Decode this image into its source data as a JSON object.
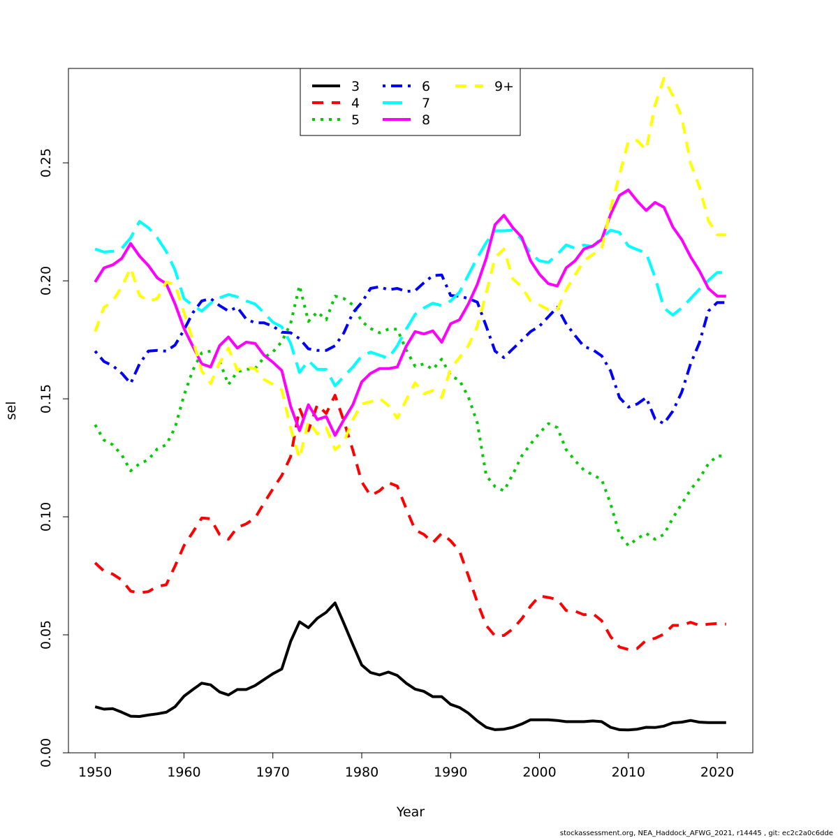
{
  "chart_data": {
    "type": "line",
    "xlabel": "Year",
    "ylabel": "sel",
    "xlim": [
      1947,
      2024
    ],
    "ylim": [
      0,
      0.29
    ],
    "x_ticks": [
      1950,
      1960,
      1970,
      1980,
      1990,
      2000,
      2010,
      2020
    ],
    "y_ticks": [
      0.0,
      0.05,
      0.1,
      0.15,
      0.2,
      0.25
    ],
    "y_tick_labels": [
      "0.00",
      "0.05",
      "0.10",
      "0.15",
      "0.20",
      "0.25"
    ],
    "grid": false,
    "legend_position": "top-center",
    "x": [
      1950,
      1951,
      1952,
      1953,
      1954,
      1955,
      1956,
      1957,
      1958,
      1959,
      1960,
      1961,
      1962,
      1963,
      1964,
      1965,
      1966,
      1967,
      1968,
      1969,
      1970,
      1971,
      1972,
      1973,
      1974,
      1975,
      1976,
      1977,
      1978,
      1979,
      1980,
      1981,
      1982,
      1983,
      1984,
      1985,
      1986,
      1987,
      1988,
      1989,
      1990,
      1991,
      1992,
      1993,
      1994,
      1995,
      1996,
      1997,
      1998,
      1999,
      2000,
      2001,
      2002,
      2003,
      2004,
      2005,
      2006,
      2007,
      2008,
      2009,
      2010,
      2011,
      2012,
      2013,
      2014,
      2015,
      2016,
      2017,
      2018,
      2019,
      2020,
      2021
    ],
    "series": [
      {
        "name": "3",
        "color": "#000000",
        "dash": "solid",
        "width": 4,
        "values": [
          0.0195,
          0.0185,
          0.0187,
          0.0172,
          0.0155,
          0.0154,
          0.016,
          0.0165,
          0.0172,
          0.0195,
          0.024,
          0.0268,
          0.0295,
          0.0288,
          0.0258,
          0.0245,
          0.0268,
          0.0268,
          0.0285,
          0.031,
          0.0335,
          0.0355,
          0.0472,
          0.0555,
          0.053,
          0.057,
          0.0595,
          0.0635,
          0.0548,
          0.0458,
          0.0372,
          0.034,
          0.033,
          0.0342,
          0.0328,
          0.0295,
          0.027,
          0.026,
          0.0238,
          0.0238,
          0.0205,
          0.0192,
          0.0168,
          0.0135,
          0.0108,
          0.0098,
          0.01,
          0.0108,
          0.0122,
          0.014,
          0.014,
          0.014,
          0.0137,
          0.0132,
          0.0132,
          0.0132,
          0.0135,
          0.0132,
          0.0108,
          0.0098,
          0.0097,
          0.01,
          0.0108,
          0.0107,
          0.0113,
          0.0127,
          0.013,
          0.0137,
          0.013,
          0.0128,
          0.0128,
          0.0128
        ]
      },
      {
        "name": "4",
        "color": "#ff0000",
        "dash": "dashed",
        "width": 4,
        "values": [
          0.0805,
          0.077,
          0.0757,
          0.0732,
          0.0685,
          0.0678,
          0.0683,
          0.0705,
          0.0712,
          0.0792,
          0.0878,
          0.0935,
          0.0995,
          0.0992,
          0.0925,
          0.0905,
          0.0955,
          0.097,
          0.0995,
          0.1058,
          0.1118,
          0.1175,
          0.1255,
          0.146,
          0.1365,
          0.1475,
          0.1438,
          0.1515,
          0.1405,
          0.1282,
          0.1148,
          0.109,
          0.111,
          0.1145,
          0.113,
          0.1035,
          0.0945,
          0.0925,
          0.089,
          0.093,
          0.0898,
          0.0855,
          0.075,
          0.0638,
          0.054,
          0.0495,
          0.0497,
          0.0525,
          0.0568,
          0.0622,
          0.0665,
          0.0658,
          0.065,
          0.0603,
          0.06,
          0.0585,
          0.059,
          0.056,
          0.0492,
          0.0448,
          0.0438,
          0.0442,
          0.0477,
          0.0485,
          0.0503,
          0.054,
          0.054,
          0.0553,
          0.054,
          0.0545,
          0.0548,
          0.0545
        ]
      },
      {
        "name": "5",
        "color": "#00cd00",
        "dash": "dotted",
        "width": 4,
        "values": [
          0.139,
          0.1325,
          0.1305,
          0.1262,
          0.1195,
          0.1225,
          0.1242,
          0.1288,
          0.1305,
          0.1378,
          0.1515,
          0.1622,
          0.1695,
          0.1702,
          0.166,
          0.156,
          0.1615,
          0.1625,
          0.1628,
          0.1675,
          0.1698,
          0.1742,
          0.182,
          0.198,
          0.1828,
          0.1868,
          0.1835,
          0.1935,
          0.1925,
          0.1898,
          0.1828,
          0.1798,
          0.178,
          0.1795,
          0.1795,
          0.1708,
          0.1638,
          0.1648,
          0.1625,
          0.1668,
          0.1598,
          0.1578,
          0.1508,
          0.1398,
          0.1175,
          0.1128,
          0.111,
          0.118,
          0.1258,
          0.1308,
          0.1355,
          0.1395,
          0.1378,
          0.1285,
          0.1238,
          0.1198,
          0.1178,
          0.1158,
          0.1055,
          0.0925,
          0.0878,
          0.0908,
          0.093,
          0.0905,
          0.0925,
          0.0995,
          0.1055,
          0.1115,
          0.1162,
          0.1225,
          0.1258,
          0.1258
        ]
      },
      {
        "name": "6",
        "color": "#0000ff",
        "dash": "dashdot",
        "width": 4,
        "values": [
          0.1702,
          0.1658,
          0.164,
          0.1608,
          0.1565,
          0.1648,
          0.1702,
          0.1705,
          0.1702,
          0.1728,
          0.1792,
          0.1865,
          0.1915,
          0.1925,
          0.1895,
          0.1872,
          0.1888,
          0.1838,
          0.1822,
          0.1822,
          0.1808,
          0.1782,
          0.178,
          0.1755,
          0.1712,
          0.1705,
          0.1705,
          0.1725,
          0.178,
          0.1865,
          0.1908,
          0.1968,
          0.1975,
          0.1962,
          0.1968,
          0.1955,
          0.1958,
          0.1992,
          0.2022,
          0.2025,
          0.1938,
          0.1935,
          0.1925,
          0.191,
          0.1808,
          0.1702,
          0.1675,
          0.1712,
          0.1748,
          0.1785,
          0.1808,
          0.1848,
          0.1888,
          0.1818,
          0.1768,
          0.1722,
          0.1708,
          0.1682,
          0.1618,
          0.1505,
          0.1465,
          0.1478,
          0.1505,
          0.1415,
          0.1395,
          0.1448,
          0.1528,
          0.1648,
          0.1738,
          0.1872,
          0.1908,
          0.1908
        ]
      },
      {
        "name": "7",
        "color": "#00ffff",
        "dash": "longdash",
        "width": 4,
        "values": [
          0.2135,
          0.2122,
          0.2125,
          0.2138,
          0.2182,
          0.2252,
          0.2225,
          0.2182,
          0.2125,
          0.2045,
          0.1925,
          0.1895,
          0.1872,
          0.1905,
          0.1928,
          0.1942,
          0.1932,
          0.1915,
          0.1902,
          0.1865,
          0.1825,
          0.1805,
          0.1735,
          0.1612,
          0.1662,
          0.1625,
          0.1625,
          0.1555,
          0.1595,
          0.1635,
          0.1682,
          0.1698,
          0.1685,
          0.1672,
          0.1725,
          0.1795,
          0.1858,
          0.1885,
          0.1905,
          0.1895,
          0.1915,
          0.1952,
          0.2025,
          0.2098,
          0.2162,
          0.2212,
          0.2212,
          0.2215,
          0.2175,
          0.2115,
          0.2085,
          0.2078,
          0.2112,
          0.2152,
          0.2138,
          0.2152,
          0.2145,
          0.2182,
          0.2215,
          0.2205,
          0.2148,
          0.2132,
          0.2118,
          0.2015,
          0.1885,
          0.1855,
          0.1885,
          0.1925,
          0.1965,
          0.2002,
          0.2035,
          0.2035
        ]
      },
      {
        "name": "8",
        "color": "#ff00ff",
        "dash": "solid",
        "width": 4,
        "values": [
          0.1995,
          0.2055,
          0.2068,
          0.2095,
          0.2158,
          0.2105,
          0.2065,
          0.2012,
          0.1988,
          0.1902,
          0.1798,
          0.1722,
          0.1648,
          0.1635,
          0.1725,
          0.1762,
          0.1715,
          0.174,
          0.1735,
          0.1685,
          0.1655,
          0.162,
          0.1468,
          0.1365,
          0.1475,
          0.1412,
          0.1425,
          0.1345,
          0.1412,
          0.1475,
          0.1572,
          0.1608,
          0.1628,
          0.1628,
          0.1635,
          0.1722,
          0.1785,
          0.1775,
          0.1788,
          0.174,
          0.1818,
          0.1835,
          0.1902,
          0.1985,
          0.2095,
          0.2238,
          0.2278,
          0.2225,
          0.2185,
          0.2085,
          0.2028,
          0.1988,
          0.1978,
          0.2055,
          0.2085,
          0.2135,
          0.2148,
          0.2175,
          0.2282,
          0.2362,
          0.2385,
          0.2338,
          0.2298,
          0.2332,
          0.2312,
          0.2228,
          0.2175,
          0.2102,
          0.2042,
          0.1968,
          0.1935,
          0.1935
        ]
      },
      {
        "name": "9+",
        "color": "#ffff00",
        "dash": "dashed",
        "width": 4,
        "values": [
          0.1785,
          0.1888,
          0.1915,
          0.1975,
          0.2055,
          0.1938,
          0.1915,
          0.1925,
          0.1995,
          0.1985,
          0.1865,
          0.1748,
          0.1618,
          0.1565,
          0.1652,
          0.1715,
          0.1622,
          0.1635,
          0.1628,
          0.1582,
          0.1562,
          0.1538,
          0.1375,
          0.1248,
          0.1405,
          0.1352,
          0.1378,
          0.1285,
          0.1318,
          0.1412,
          0.1478,
          0.1488,
          0.1502,
          0.1472,
          0.1418,
          0.1495,
          0.1568,
          0.1522,
          0.1535,
          0.1505,
          0.1628,
          0.1675,
          0.1725,
          0.1808,
          0.1948,
          0.2098,
          0.2135,
          0.2008,
          0.1975,
          0.1915,
          0.1898,
          0.1878,
          0.1878,
          0.1962,
          0.2025,
          0.2085,
          0.2112,
          0.2135,
          0.2308,
          0.2448,
          0.2592,
          0.2595,
          0.2555,
          0.2745,
          0.2858,
          0.2785,
          0.2695,
          0.2498,
          0.2398,
          0.2255,
          0.2195,
          0.2195
        ]
      }
    ]
  },
  "footer": {
    "text": "stockassessment.org, NEA_Haddock_AFWG_2021, r14445 , git: ec2c2a0c6dde"
  }
}
